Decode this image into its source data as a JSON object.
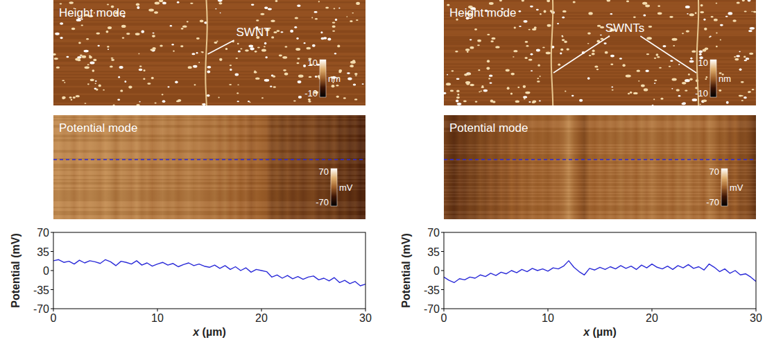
{
  "chart_data": [
    {
      "type": "line",
      "x": [
        0,
        0.5,
        1,
        1.5,
        2,
        2.5,
        3,
        3.5,
        4,
        4.5,
        5,
        5.5,
        6,
        6.5,
        7,
        7.5,
        8,
        8.5,
        9,
        9.5,
        10,
        10.5,
        11,
        11.5,
        12,
        12.5,
        13,
        13.5,
        14,
        14.5,
        15,
        15.5,
        16,
        16.5,
        17,
        17.5,
        18,
        18.5,
        19,
        19.5,
        20,
        20.5,
        21,
        21.5,
        22,
        22.5,
        23,
        23.5,
        24,
        24.5,
        25,
        25.5,
        26,
        26.5,
        27,
        27.5,
        28,
        28.5,
        29,
        29.5,
        30
      ],
      "series": [
        {
          "color": "#2a2ad8",
          "values": [
            18,
            20,
            15,
            17,
            12,
            19,
            14,
            18,
            16,
            13,
            20,
            16,
            9,
            17,
            15,
            12,
            18,
            10,
            14,
            8,
            12,
            15,
            10,
            13,
            7,
            11,
            14,
            9,
            12,
            8,
            6,
            10,
            4,
            9,
            2,
            7,
            0,
            5,
            -3,
            2,
            0,
            -2,
            -12,
            -8,
            -14,
            -9,
            -15,
            -11,
            -16,
            -12,
            -10,
            -17,
            -14,
            -19,
            -13,
            -22,
            -18,
            -24,
            -20,
            -28,
            -25
          ]
        }
      ],
      "xlabel": "x (µm)",
      "ylabel": "Potential (mV)",
      "xlim": [
        0,
        30
      ],
      "xticks": [
        0,
        10,
        20,
        30
      ],
      "ylim": [
        -70,
        70
      ],
      "yticks": [
        -70,
        -35,
        0,
        35,
        70
      ]
    },
    {
      "type": "line",
      "x": [
        0,
        0.5,
        1,
        1.5,
        2,
        2.5,
        3,
        3.5,
        4,
        4.5,
        5,
        5.5,
        6,
        6.5,
        7,
        7.5,
        8,
        8.5,
        9,
        9.5,
        10,
        10.5,
        11,
        11.5,
        12,
        12.5,
        13,
        13.5,
        14,
        14.5,
        15,
        15.5,
        16,
        16.5,
        17,
        17.5,
        18,
        18.5,
        19,
        19.5,
        20,
        20.5,
        21,
        21.5,
        22,
        22.5,
        23,
        23.5,
        24,
        24.5,
        25,
        25.5,
        26,
        26.5,
        27,
        27.5,
        28,
        28.5,
        29,
        29.5,
        30
      ],
      "series": [
        {
          "color": "#2a2ad8",
          "values": [
            -12,
            -18,
            -22,
            -15,
            -17,
            -12,
            -14,
            -8,
            -11,
            -5,
            -9,
            -3,
            -6,
            0,
            -4,
            2,
            -2,
            4,
            0,
            3,
            -1,
            5,
            3,
            8,
            18,
            6,
            -2,
            -8,
            4,
            1,
            6,
            2,
            7,
            3,
            9,
            4,
            8,
            2,
            10,
            5,
            12,
            6,
            3,
            8,
            2,
            9,
            5,
            11,
            4,
            7,
            1,
            12,
            6,
            -2,
            3,
            -5,
            0,
            -8,
            -6,
            -12,
            -20
          ]
        }
      ],
      "xlabel": "x (µm)",
      "ylabel": "Potential (mV)",
      "xlim": [
        0,
        30
      ],
      "xticks": [
        0,
        10,
        20,
        30
      ],
      "ylim": [
        -70,
        70
      ],
      "yticks": [
        -70,
        -35,
        0,
        35,
        70
      ]
    }
  ],
  "images": [
    {
      "height": {
        "title": "Height mode",
        "annotation": "SWNT",
        "swnt_x": [
          14.7
        ],
        "colorbar": {
          "range": [
            -10,
            10
          ],
          "ticks": [
            -10,
            10
          ],
          "unit": "nm"
        }
      },
      "potential": {
        "title": "Potential mode",
        "colorbar": {
          "range": [
            -70,
            70
          ],
          "ticks": [
            -70,
            70
          ],
          "unit": "mV"
        }
      }
    },
    {
      "height": {
        "title": "Height mode",
        "annotation": "SWNTs",
        "swnt_x": [
          10.4,
          24.4
        ],
        "colorbar": {
          "range": [
            -10,
            10
          ],
          "ticks": [
            -10,
            10
          ],
          "unit": "nm"
        }
      },
      "potential": {
        "title": "Potential mode",
        "colorbar": {
          "range": [
            -70,
            70
          ],
          "ticks": [
            -70,
            70
          ],
          "unit": "mV"
        }
      }
    }
  ]
}
